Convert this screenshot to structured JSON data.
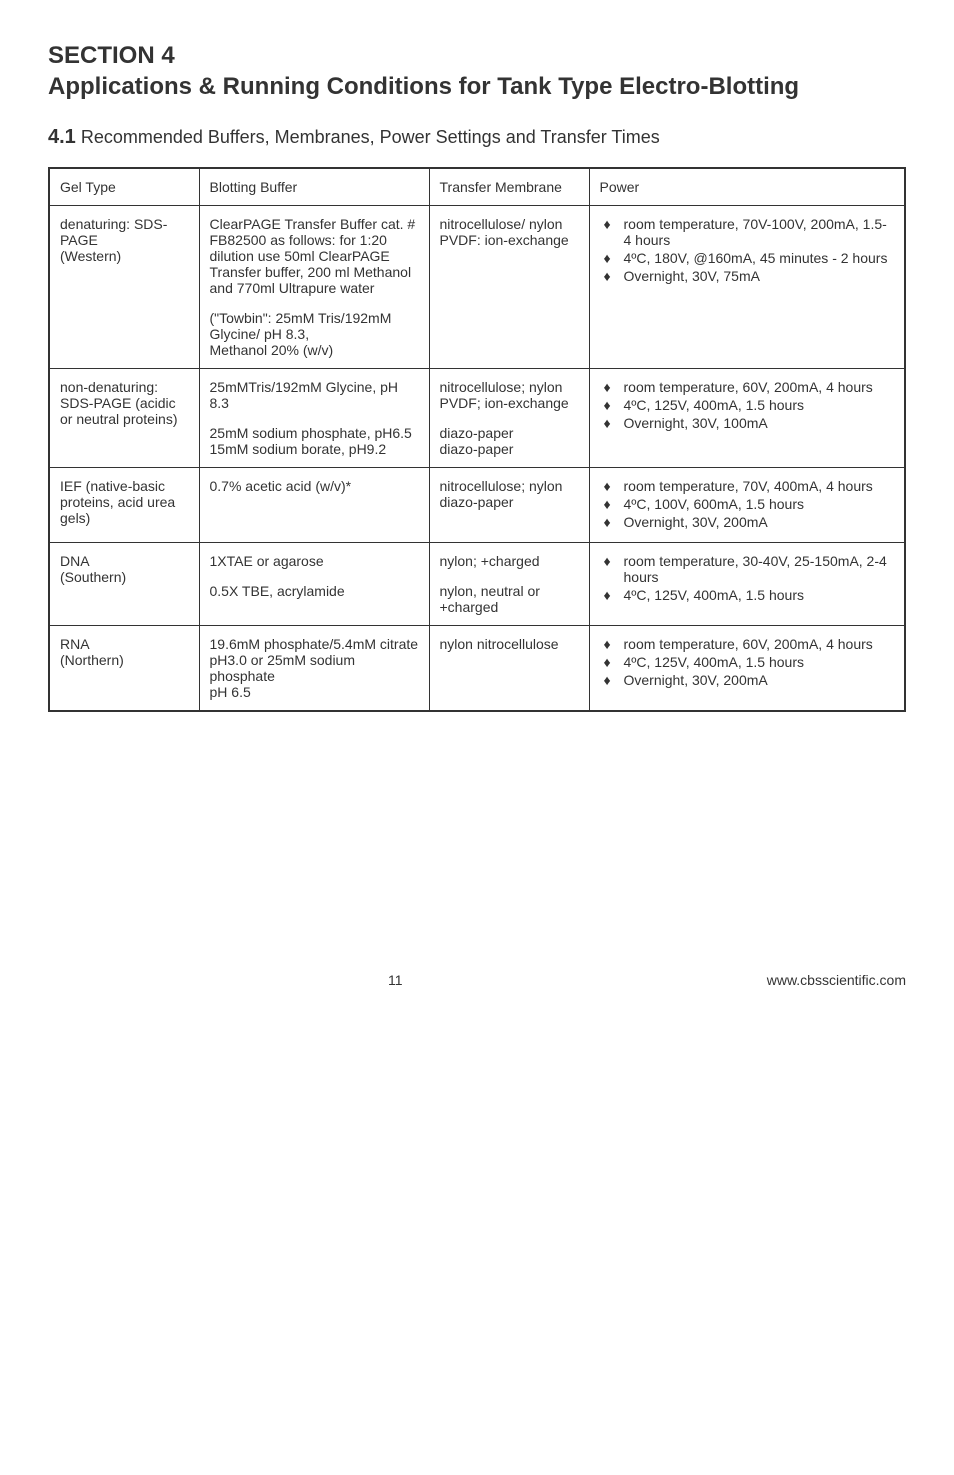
{
  "heading": {
    "line1": "SECTION 4",
    "line2": "Applications & Running Conditions for Tank Type Electro-Blotting"
  },
  "subheading": {
    "lead": "4.1",
    "rest": "Recommended Buffers, Membranes, Power Settings and Transfer Times"
  },
  "columns": [
    "Gel Type",
    "Blotting Buffer",
    "Transfer Membrane",
    "Power"
  ],
  "rows": [
    {
      "gel": "denaturing: SDS-PAGE\n(Western)",
      "buffer_blocks": [
        "ClearPAGE Transfer Buffer cat. # FB82500  as follows: for 1:20 dilution use 50ml ClearPAGE Transfer buffer, 200 ml Methanol and 770ml Ultrapure water",
        "(\"Towbin\": 25mM Tris/192mM Glycine/ pH 8.3,\nMethanol 20% (w/v)"
      ],
      "membrane_blocks": [
        "nitrocellulose/ nylon PVDF: ion-exchange"
      ],
      "power": [
        "room temperature, 70V-100V, 200mA, 1.5- 4 hours",
        "4ºC, 180V, @160mA,       45 minutes - 2 hours",
        "Overnight, 30V, 75mA"
      ]
    },
    {
      "gel": "non-denaturing: SDS-PAGE (acidic or neutral proteins)",
      "buffer_blocks": [
        "25mMTris/192mM Glycine, pH 8.3",
        "25mM sodium phosphate, pH6.5\n15mM sodium borate, pH9.2"
      ],
      "membrane_blocks": [
        "nitrocellulose; nylon PVDF; ion-exchange",
        "diazo-paper\ndiazo-paper"
      ],
      "power": [
        "room temperature, 60V, 200mA, 4 hours",
        "4ºC, 125V, 400mA, 1.5 hours",
        "Overnight, 30V, 100mA"
      ]
    },
    {
      "gel": "IEF (native-basic proteins, acid urea gels)",
      "buffer_blocks": [
        "0.7% acetic acid (w/v)*"
      ],
      "membrane_blocks": [
        "nitrocellulose; nylon diazo-paper"
      ],
      "power": [
        "room temperature, 70V, 400mA, 4 hours",
        "4ºC, 100V, 600mA, 1.5 hours",
        "Overnight, 30V, 200mA"
      ]
    },
    {
      "gel": "DNA\n(Southern)",
      "buffer_blocks": [
        "1XTAE or agarose",
        "0.5X TBE, acrylamide"
      ],
      "membrane_blocks": [
        "nylon; +charged",
        "nylon, neutral or +charged"
      ],
      "power": [
        "room temperature, 30-40V, 25-150mA, 2-4 hours",
        "4ºC, 125V, 400mA, 1.5 hours"
      ]
    },
    {
      "gel": "RNA\n(Northern)",
      "buffer_blocks": [
        "19.6mM phosphate/5.4mM citrate\npH3.0 or 25mM sodium phosphate\npH 6.5"
      ],
      "membrane_blocks": [
        "nylon nitrocellulose"
      ],
      "power": [
        "room temperature, 60V, 200mA, 4 hours",
        "4ºC, 125V, 400mA, 1.5 hours",
        "Overnight, 30V, 200mA"
      ]
    }
  ],
  "footer": {
    "page": "11",
    "url": "www.cbsscientific.com"
  }
}
